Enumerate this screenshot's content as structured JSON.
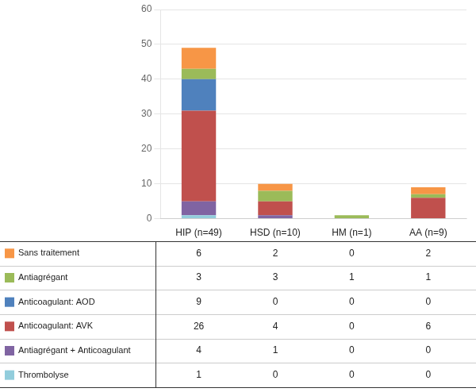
{
  "chart_data": {
    "type": "bar",
    "categories": [
      "HIP (n=49)",
      "HSD (n=10)",
      "HM (n=1)",
      "AA (n=9)"
    ],
    "series": [
      {
        "name": "Thrombolyse",
        "color": "#92CDDC",
        "values": [
          1,
          0,
          0,
          0
        ]
      },
      {
        "name": "Antiagrégant + Anticoagulant",
        "color": "#8064A2",
        "values": [
          4,
          1,
          0,
          0
        ]
      },
      {
        "name": "Anticoagulant: AVK",
        "color": "#C0504D",
        "values": [
          26,
          4,
          0,
          6
        ]
      },
      {
        "name": "Anticoagulant: AOD",
        "color": "#4F81BD",
        "values": [
          9,
          0,
          0,
          0
        ]
      },
      {
        "name": "Antiagrégant",
        "color": "#9BBB59",
        "values": [
          3,
          3,
          1,
          1
        ]
      },
      {
        "name": "Sans traitement",
        "color": "#F79646",
        "values": [
          6,
          2,
          0,
          2
        ]
      }
    ],
    "ylim": [
      0,
      60
    ],
    "yticks": [
      0,
      10,
      20,
      30,
      40,
      50,
      60
    ],
    "grid": true,
    "stacked": true
  }
}
